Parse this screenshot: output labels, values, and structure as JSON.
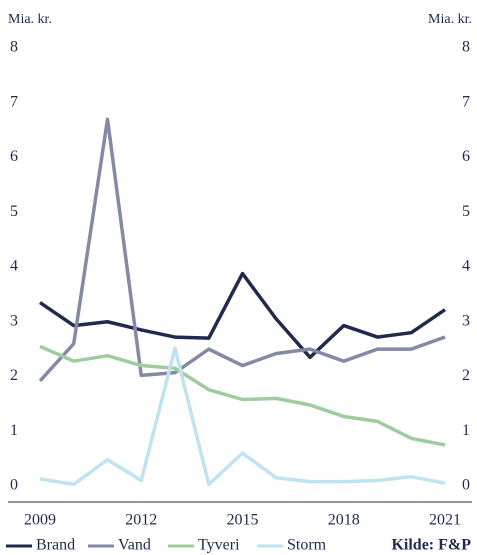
{
  "chart_data": {
    "type": "line",
    "ylabel": "Mia. kr.",
    "y2label": "Mia. kr.",
    "source": "Kilde: F&P",
    "x": [
      2009,
      2010,
      2011,
      2012,
      2013,
      2014,
      2015,
      2016,
      2017,
      2018,
      2019,
      2020,
      2021
    ],
    "xlim": [
      2009,
      2021
    ],
    "xticks": [
      2009,
      2012,
      2015,
      2018,
      2021
    ],
    "ylim": [
      0,
      8
    ],
    "yticks": [
      0,
      1,
      2,
      3,
      4,
      5,
      6,
      7,
      8
    ],
    "y2lim": [
      0,
      8
    ],
    "y2ticks": [
      0,
      1,
      2,
      3,
      4,
      5,
      6,
      7,
      8
    ],
    "grid": false,
    "legend": "bottom",
    "series": [
      {
        "name": "Brand",
        "color": "#1f2a4e",
        "values": [
          3.35,
          2.93,
          3.0,
          2.85,
          2.72,
          2.7,
          3.88,
          3.05,
          2.35,
          2.93,
          2.72,
          2.8,
          3.22
        ]
      },
      {
        "name": "Vand",
        "color": "#8489a6",
        "values": [
          1.92,
          2.6,
          6.7,
          2.02,
          2.07,
          2.5,
          2.2,
          2.42,
          2.5,
          2.28,
          2.5,
          2.5,
          2.72
        ]
      },
      {
        "name": "Tyveri",
        "color": "#9fcc9f",
        "values": [
          2.55,
          2.28,
          2.38,
          2.2,
          2.15,
          1.76,
          1.58,
          1.6,
          1.48,
          1.27,
          1.18,
          0.87,
          0.75
        ]
      },
      {
        "name": "Storm",
        "color": "#bfe3f0",
        "values": [
          0.13,
          0.03,
          0.48,
          0.1,
          2.52,
          0.03,
          0.6,
          0.15,
          0.08,
          0.08,
          0.1,
          0.17,
          0.05
        ]
      }
    ]
  }
}
